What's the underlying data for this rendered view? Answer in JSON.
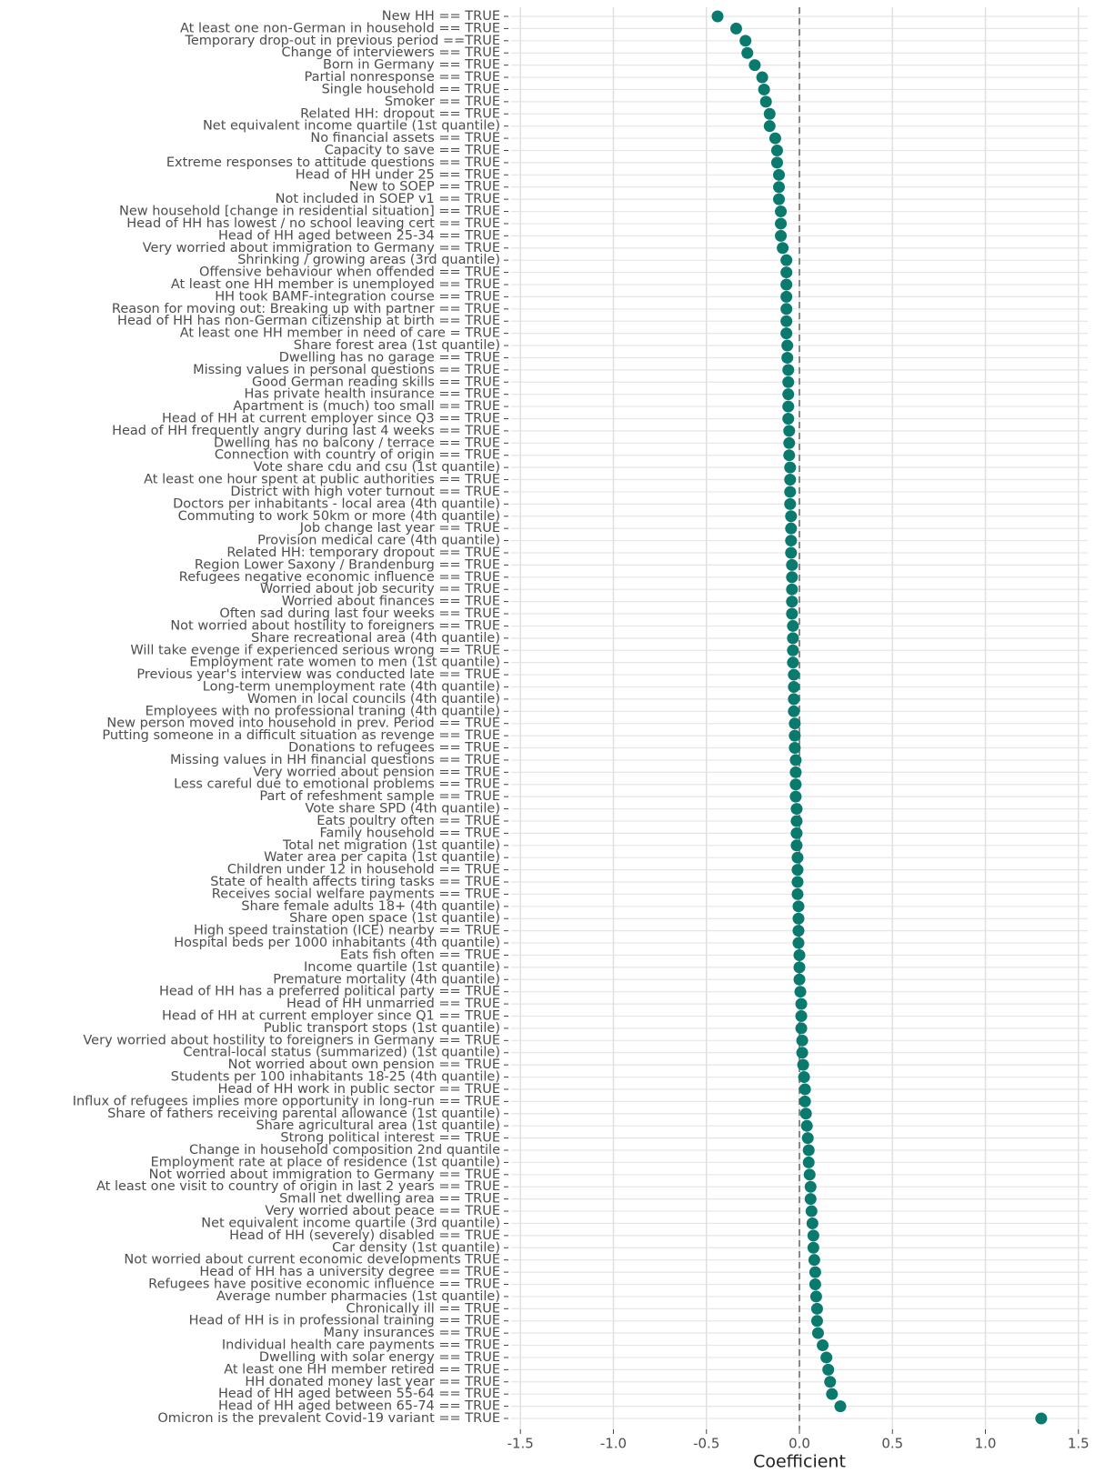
{
  "chart_data": {
    "type": "dot",
    "xlabel": "Coefficient",
    "color": "#0b7a6e",
    "grid": true,
    "vline": 0,
    "xlim": [
      -1.55,
      1.55
    ],
    "xticks": [
      -1.5,
      {
        "value": -1,
        "label": "-1.0"
      },
      -0.5,
      {
        "value": 0,
        "label": "0.0"
      },
      0.5,
      {
        "value": 1,
        "label": "1.0"
      },
      1.5
    ],
    "categories": [
      "New HH == TRUE",
      "At least one non-German in household == TRUE",
      "Temporary drop-out in previous period ==TRUE",
      "Change of interviewers == TRUE",
      "Born in Germany == TRUE",
      "Partial nonresponse == TRUE",
      "Single household == TRUE",
      "Smoker == TRUE",
      "Related HH: dropout == TRUE",
      "Net equivalent income quartile  (1st quantile)",
      "No financial assets == TRUE",
      "Capacity to save == TRUE",
      "Extreme responses to attitude questions == TRUE",
      "Head of HH under 25 == TRUE",
      "New to SOEP == TRUE",
      "Not included in SOEP v1 == TRUE",
      "New household [change in residential situation] == TRUE",
      "Head of HH has lowest / no school leaving cert == TRUE",
      "Head of HH aged between 25-34 == TRUE",
      "Very worried about immigration to Germany == TRUE",
      "Shrinking / growing areas (3rd quantile)",
      "Offensive behaviour when offended == TRUE",
      "At least one HH member is unemployed == TRUE",
      "HH  took BAMF-integration course == TRUE",
      "Reason for moving out: Breaking up with partner == TRUE",
      "Head of HH has non-German citizenship at birth == TRUE",
      "At least one HH member in need of care = TRUE",
      "Share forest area (1st quantile)",
      "Dwelling has no garage == TRUE",
      "Missing values in personal questions == TRUE",
      "Good German reading skills  == TRUE",
      "Has private health insurance == TRUE",
      "Apartment is (much) too small == TRUE",
      "Head of HH  at current employer since Q3 == TRUE",
      "Head of HH frequently angry during last 4 weeks == TRUE",
      "Dwelling has no balcony / terrace == TRUE",
      "Connection with country of origin == TRUE",
      "Vote share cdu and csu (1st quantile)",
      "At least one hour spent at public authorities == TRUE",
      "District with high voter turnout == TRUE",
      "Doctors per inhabitants - local area (4th quantile)",
      "Commuting to work 50km or more (4th quantile)",
      "Job change last year == TRUE",
      "Provision medical care (4th quantile)",
      "Related HH: temporary dropout == TRUE",
      "Region Lower Saxony / Brandenburg == TRUE",
      "Refugees negative economic influence == TRUE",
      "Worried about job security == TRUE",
      "Worried about finances == TRUE",
      "Often sad during last four weeks == TRUE",
      "Not worried about hostility to foreigners == TRUE",
      "Share recreational area (4th quantile)",
      "Will take evenge if experienced serious wrong  == TRUE",
      "Employment rate women to men (1st quantile)",
      "Previous year's interview was conducted late  == TRUE",
      "Long-term unemployment rate (4th quantile)",
      "Women in local councils (4th quantile)",
      "Employees with no professional traning (4th quantile)",
      "New person moved into household in prev. Period == TRUE",
      "Putting someone in a difficult situation as revenge == TRUE",
      "Donations to refugees == TRUE",
      "Missing values in HH financial questions == TRUE",
      "Very worried about pension == TRUE",
      "Less careful due to emotional problems == TRUE",
      "Part of refeshment sample == TRUE",
      "Vote share SPD (4th quantile)",
      "Eats poultry often == TRUE",
      "Family household == TRUE",
      "Total net migration (1st quantile)",
      "Water area per capita (1st quantile)",
      "Children under 12 in household == TRUE",
      "State of health affects tiring tasks == TRUE",
      "Receives social welfare payments == TRUE",
      "Share female adults 18+ (4th quantile)",
      "Share open space (1st quantile)",
      "High speed trainstation (ICE) nearby == TRUE",
      "Hospital beds per 1000 inhabitants (4th quantile)",
      "Eats fish often == TRUE",
      "Income quartile (1st quantile)",
      "Premature mortality (4th quantile)",
      "Head of HH has a preferred political party == TRUE",
      "Head of HH unmarried  == TRUE",
      "Head of HH  at current employer since Q1 == TRUE",
      "Public transport stops (1st quantile)",
      "Very worried about hostility to foreigners in Germany == TRUE",
      "Central-local status (summarized) (1st quantile)",
      "Not worried about own pension == TRUE",
      "Students per 100 inhabitants 18-25 (4th quantile)",
      "Head of HH work in public sector == TRUE",
      "Influx of refugees implies more opportunity in long-run  == TRUE",
      "Share of fathers receiving parental allowance (1st quantile)",
      "Share agricultural area (1st quantile)",
      "Strong political interest == TRUE",
      "Change in household composition 2nd quantile",
      "Employment rate at place of residence (1st quantile)",
      "Not worried about immigration to Germany == TRUE",
      "At least one visit to country of origin in last 2 years == TRUE",
      "Small net dwelling area == TRUE",
      "Very worried about peace == TRUE",
      "Net equivalent income quartile  (3rd quantile)",
      "Head of HH (severely) disabled == TRUE",
      "Car density (1st quantile)",
      "Not worried about current economic developments TRUE",
      "Head of HH has a university degree == TRUE",
      "Refugees have positive economic influence == TRUE",
      "Average number pharmacies (1st quantile)",
      "Chronically ill == TRUE",
      "Head of HH is in professional training == TRUE",
      "Many insurances == TRUE",
      "Individual health care payments == TRUE",
      "Dwelling with solar energy == TRUE",
      "At least one HH member retired == TRUE",
      "HH donated money last year == TRUE",
      "Head of HH aged between 55-64 == TRUE",
      "Head of HH aged between 65-74 == TRUE",
      "Omicron is the prevalent Covid-19 variant == TRUE"
    ],
    "values": [
      -0.44,
      -0.34,
      -0.29,
      -0.28,
      -0.24,
      -0.2,
      -0.19,
      -0.18,
      -0.16,
      -0.16,
      -0.13,
      -0.12,
      -0.12,
      -0.11,
      -0.11,
      -0.11,
      -0.1,
      -0.1,
      -0.1,
      -0.09,
      -0.07,
      -0.07,
      -0.07,
      -0.07,
      -0.07,
      -0.07,
      -0.07,
      -0.065,
      -0.065,
      -0.06,
      -0.06,
      -0.06,
      -0.06,
      -0.06,
      -0.055,
      -0.055,
      -0.055,
      -0.05,
      -0.05,
      -0.05,
      -0.05,
      -0.045,
      -0.045,
      -0.045,
      -0.045,
      -0.04,
      -0.04,
      -0.04,
      -0.04,
      -0.04,
      -0.035,
      -0.035,
      -0.035,
      -0.035,
      -0.03,
      -0.03,
      -0.03,
      -0.03,
      -0.025,
      -0.025,
      -0.025,
      -0.02,
      -0.02,
      -0.02,
      -0.02,
      -0.015,
      -0.015,
      -0.015,
      -0.015,
      -0.01,
      -0.01,
      -0.01,
      -0.01,
      -0.005,
      -0.005,
      -0.005,
      -0.005,
      0,
      0,
      0,
      0.005,
      0.01,
      0.01,
      0.01,
      0.015,
      0.015,
      0.02,
      0.025,
      0.03,
      0.03,
      0.035,
      0.04,
      0.045,
      0.05,
      0.05,
      0.055,
      0.06,
      0.06,
      0.065,
      0.07,
      0.075,
      0.075,
      0.08,
      0.085,
      0.085,
      0.09,
      0.095,
      0.095,
      0.1,
      0.125,
      0.145,
      0.155,
      0.165,
      0.175,
      0.22,
      1.3
    ]
  }
}
